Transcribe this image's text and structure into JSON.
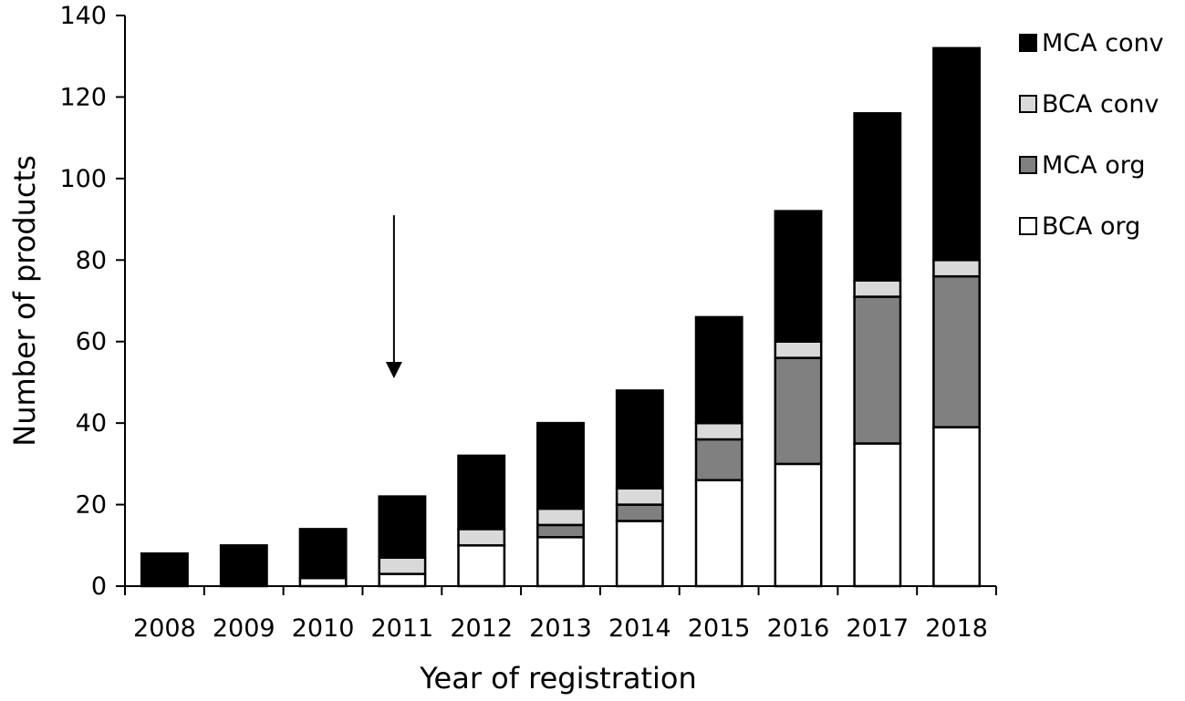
{
  "chart_data": {
    "type": "bar",
    "stacked": true,
    "title": "",
    "xlabel": "Year of registration",
    "ylabel": "Number of products",
    "ylim": [
      0,
      140
    ],
    "yticks": [
      0,
      20,
      40,
      60,
      80,
      100,
      120,
      140
    ],
    "categories": [
      "2008",
      "2009",
      "2010",
      "2011",
      "2012",
      "2013",
      "2014",
      "2015",
      "2016",
      "2017",
      "2018"
    ],
    "series": [
      {
        "name": "BCA org",
        "color": "#ffffff",
        "values": [
          0,
          0,
          2,
          3,
          10,
          12,
          16,
          26,
          30,
          35,
          39
        ]
      },
      {
        "name": "MCA org",
        "color": "#808080",
        "values": [
          0,
          0,
          0,
          0,
          0,
          3,
          4,
          10,
          26,
          36,
          37
        ]
      },
      {
        "name": "BCA conv",
        "color": "#d9d9d9",
        "values": [
          0,
          0,
          0,
          4,
          4,
          4,
          4,
          4,
          4,
          4,
          4
        ]
      },
      {
        "name": "MCA conv",
        "color": "#000000",
        "values": [
          8,
          10,
          12,
          15,
          18,
          21,
          24,
          26,
          32,
          41,
          52
        ]
      }
    ],
    "legend": {
      "placement": "right",
      "order": [
        "MCA conv",
        "BCA conv",
        "MCA org",
        "BCA org"
      ]
    },
    "annotations": [
      {
        "type": "arrow",
        "direction": "down",
        "category": "2011",
        "from_value": 91,
        "to_value": 51
      }
    ],
    "grid": false
  }
}
